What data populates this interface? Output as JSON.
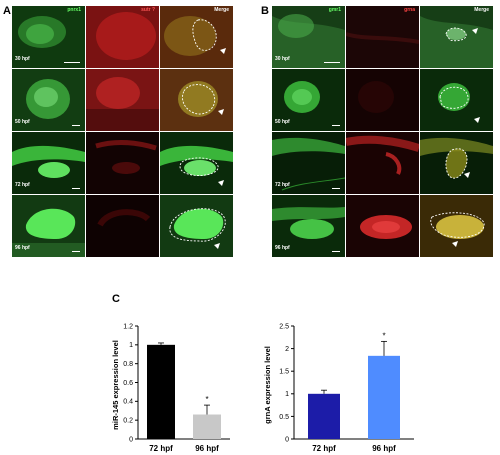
{
  "panels": {
    "a": {
      "letter": "A",
      "columns": [
        "pnrx1",
        "sutr ?",
        "Merge"
      ],
      "stages": [
        "30 hpf",
        "50 hpf",
        "72 hpf",
        "96 hpf"
      ]
    },
    "b": {
      "letter": "B",
      "columns": [
        "gmr1",
        "grna",
        "Merge"
      ],
      "stages": [
        "30 hpf",
        "50 hpf",
        "72 hpf",
        "96 hpf"
      ]
    },
    "c": {
      "letter": "C"
    }
  },
  "colors": {
    "black_bar": "#000000",
    "gray_bar": "#c8c8c8",
    "dark_blue_bar": "#1c1ca8",
    "light_blue_bar": "#4f8cff"
  },
  "chart_data": [
    {
      "type": "bar",
      "categories": [
        "72 hpf",
        "96 hpf"
      ],
      "values": [
        1.0,
        0.26
      ],
      "errors": [
        0.02,
        0.1
      ],
      "significance": [
        "",
        "*"
      ],
      "ylabel": "miR-145 expression level",
      "ylim": [
        0,
        1.2
      ],
      "yticks": [
        "0",
        "0.2",
        "0.4",
        "0.6",
        "0.8",
        "1",
        "1.2"
      ],
      "bar_colors": [
        "#000000",
        "#c8c8c8"
      ]
    },
    {
      "type": "bar",
      "categories": [
        "72 hpf",
        "96 hpf"
      ],
      "values": [
        1.0,
        1.84
      ],
      "errors": [
        0.08,
        0.32
      ],
      "significance": [
        "",
        "*"
      ],
      "ylabel": "grnA expression level",
      "ylim": [
        0,
        2.5
      ],
      "yticks": [
        "0",
        "0.5",
        "1",
        "1.5",
        "2",
        "2.5"
      ],
      "bar_colors": [
        "#1c1ca8",
        "#4f8cff"
      ]
    }
  ]
}
